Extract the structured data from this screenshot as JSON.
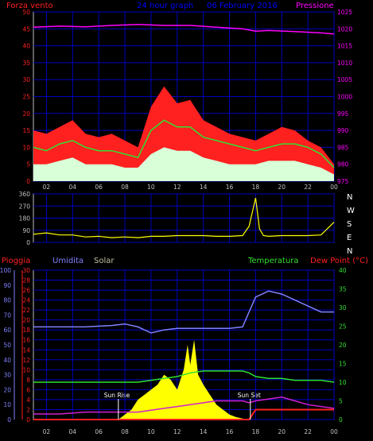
{
  "colors": {
    "wind": "#ff2020",
    "gust_avg": "#30e030",
    "wind_avg": "#d8ffd8",
    "pressure": "#ff00ff",
    "direction": "#ffff00",
    "rain": "#ff2020",
    "humidity": "#8080ff",
    "solar": "#ffff00",
    "temperature": "#30e030",
    "dewpoint": "#d020d0",
    "grid": "#0000c0",
    "axis": "#c0c0c0",
    "title": "#0000ff"
  },
  "chart_data": [
    {
      "type": "line",
      "title": "24 hour graph",
      "date": "06 February 2016",
      "left_label": "Forza vento",
      "right_label": "Pressione",
      "x_ticks": [
        "02",
        "04",
        "06",
        "08",
        "10",
        "12",
        "14",
        "16",
        "18",
        "20",
        "22",
        "00"
      ],
      "y_left_ticks": [
        "0",
        "5",
        "10",
        "15",
        "20",
        "25",
        "30",
        "35",
        "40",
        "45",
        "50"
      ],
      "y_right_ticks": [
        "975",
        "980",
        "985",
        "990",
        "995",
        "1000",
        "1005",
        "1010",
        "1015",
        "1020",
        "1025"
      ],
      "ylim_left": [
        0,
        50
      ],
      "ylim_right": [
        975,
        1025
      ],
      "xlim": [
        1,
        24
      ],
      "series": [
        {
          "key": "wind",
          "x": [
            1,
            2,
            3,
            4,
            5,
            6,
            7,
            8,
            9,
            10,
            11,
            12,
            13,
            14,
            15,
            16,
            17,
            18,
            19,
            20,
            21,
            22,
            23,
            24
          ],
          "values": [
            15,
            14,
            16,
            18,
            14,
            13,
            14,
            12,
            10,
            22,
            28,
            23,
            24,
            18,
            16,
            14,
            13,
            12,
            14,
            16,
            15,
            12,
            10,
            5
          ]
        },
        {
          "key": "gust_avg",
          "x": [
            1,
            2,
            3,
            4,
            5,
            6,
            7,
            8,
            9,
            10,
            11,
            12,
            13,
            14,
            15,
            16,
            17,
            18,
            19,
            20,
            21,
            22,
            23,
            24
          ],
          "values": [
            10,
            9,
            11,
            12,
            10,
            9,
            9,
            8,
            7,
            15,
            18,
            16,
            16,
            13,
            12,
            11,
            10,
            9,
            10,
            11,
            11,
            10,
            8,
            4
          ]
        },
        {
          "key": "wind_avg",
          "x": [
            1,
            2,
            3,
            4,
            5,
            6,
            7,
            8,
            9,
            10,
            11,
            12,
            13,
            14,
            15,
            16,
            17,
            18,
            19,
            20,
            21,
            22,
            23,
            24
          ],
          "values": [
            5,
            5,
            6,
            7,
            5,
            5,
            5,
            4,
            4,
            8,
            10,
            9,
            9,
            7,
            6,
            5,
            5,
            5,
            6,
            6,
            6,
            5,
            4,
            2
          ]
        },
        {
          "key": "pressure",
          "x": [
            1,
            3,
            5,
            7,
            9,
            11,
            13,
            15,
            17,
            18,
            19,
            21,
            23,
            24
          ],
          "values": [
            1020.5,
            1020.8,
            1020.6,
            1021,
            1021.3,
            1021,
            1021,
            1020.5,
            1020,
            1019.3,
            1019.5,
            1019.2,
            1018.8,
            1018.5
          ]
        }
      ]
    },
    {
      "type": "line",
      "right_label_ticks": [
        "N",
        "W",
        "S",
        "E",
        "N"
      ],
      "y_ticks": [
        "0",
        "90",
        "180",
        "270",
        "360"
      ],
      "ylim": [
        0,
        360
      ],
      "xlim": [
        1,
        24
      ],
      "series": [
        {
          "key": "direction",
          "x": [
            1,
            2,
            3,
            4,
            5,
            6,
            7,
            8,
            9,
            10,
            11,
            12,
            13,
            14,
            15,
            16,
            17,
            17.5,
            18,
            18.3,
            18.6,
            19,
            20,
            21,
            22,
            23,
            24
          ],
          "values": [
            60,
            70,
            55,
            55,
            40,
            45,
            35,
            40,
            35,
            45,
            45,
            50,
            50,
            50,
            45,
            45,
            50,
            120,
            330,
            100,
            50,
            45,
            50,
            50,
            50,
            55,
            150
          ]
        }
      ]
    },
    {
      "type": "line",
      "left_labels": [
        "Pioggia",
        "Umidita",
        "Solar"
      ],
      "right_labels": [
        "Temperatura",
        "Dew Point (°C)"
      ],
      "humidity_ticks": [
        "0",
        "10",
        "20",
        "30",
        "40",
        "50",
        "60",
        "70",
        "80",
        "90",
        "100"
      ],
      "rain_ticks": [
        "0",
        "2",
        "4",
        "6",
        "8",
        "10",
        "12",
        "14",
        "16",
        "18",
        "20",
        "22",
        "24",
        "26",
        "28",
        "30"
      ],
      "temp_ticks": [
        "0",
        "5",
        "10",
        "15",
        "20",
        "25",
        "30",
        "35",
        "40"
      ],
      "x_ticks": [
        "02",
        "04",
        "06",
        "08",
        "10",
        "12",
        "14",
        "16",
        "18",
        "20",
        "22",
        "00"
      ],
      "annotations": {
        "sunrise": "Sun Rise",
        "sunset": "Sun Set",
        "sunrise_x": 7.5,
        "sunset_x": 17.6
      },
      "xlim": [
        1,
        24
      ],
      "series": [
        {
          "key": "humidity",
          "ylim": [
            0,
            100
          ],
          "x": [
            1,
            3,
            5,
            7,
            8,
            9,
            10,
            11,
            12,
            13,
            14,
            15,
            16,
            17,
            17.5,
            18,
            19,
            20,
            21,
            22,
            23,
            24
          ],
          "values": [
            62,
            62,
            62,
            63,
            64,
            62,
            58,
            60,
            61,
            61,
            61,
            61,
            61,
            62,
            72,
            82,
            86,
            84,
            80,
            76,
            72,
            72
          ]
        },
        {
          "key": "temperature",
          "ylim": [
            0,
            40
          ],
          "x": [
            1,
            3,
            5,
            7,
            8,
            9,
            10,
            11,
            12,
            13,
            14,
            15,
            16,
            17,
            17.5,
            18,
            19,
            20,
            21,
            22,
            23,
            24
          ],
          "values": [
            10,
            10,
            10,
            10,
            10,
            10,
            10.5,
            11,
            11.5,
            12.5,
            13,
            13,
            13,
            13,
            12.5,
            11.5,
            11,
            11,
            10.5,
            10.5,
            10.5,
            10
          ]
        },
        {
          "key": "dewpoint",
          "ylim": [
            0,
            40
          ],
          "x": [
            1,
            3,
            5,
            7,
            8,
            9,
            10,
            11,
            12,
            13,
            14,
            15,
            16,
            17,
            17.5,
            18,
            19,
            20,
            21,
            22,
            23,
            24
          ],
          "values": [
            1.5,
            1.5,
            2,
            2,
            2,
            2,
            2.5,
            3,
            3.5,
            4,
            4.5,
            5,
            5,
            5,
            4.5,
            5,
            5.5,
            6,
            5,
            4,
            3.5,
            3
          ]
        },
        {
          "key": "solar",
          "ylim": [
            0,
            30
          ],
          "x": [
            7.5,
            8,
            8.5,
            9,
            9.5,
            10,
            10.5,
            11,
            11.5,
            12,
            12.5,
            12.8,
            13,
            13.3,
            13.6,
            14,
            14.5,
            15,
            15.5,
            16,
            16.5,
            17,
            17.5
          ],
          "values": [
            0,
            1,
            2,
            4,
            5,
            6,
            7,
            9,
            8,
            6,
            10,
            15,
            11,
            16,
            9,
            7,
            5,
            3,
            2,
            1,
            0.5,
            0.2,
            0
          ]
        },
        {
          "key": "rain",
          "ylim": [
            0,
            30
          ],
          "x": [
            1,
            16,
            17,
            17.5,
            18,
            20,
            22,
            24
          ],
          "values": [
            0,
            0,
            0,
            0,
            2,
            2,
            2,
            2
          ]
        }
      ]
    }
  ]
}
